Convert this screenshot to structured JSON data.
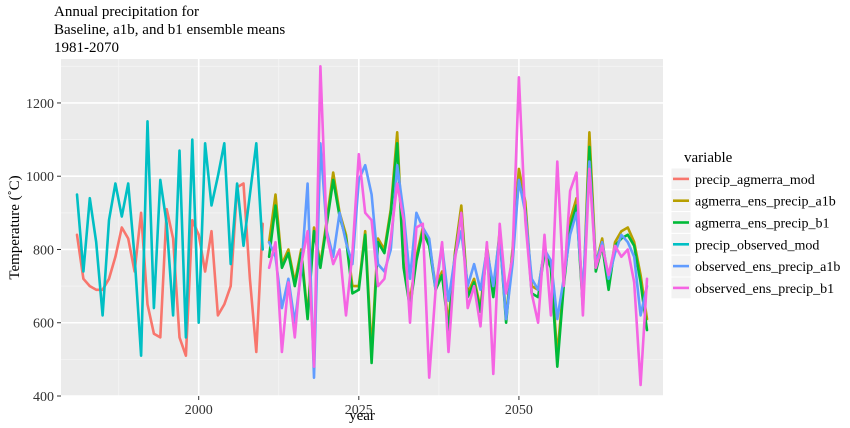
{
  "title_lines": [
    "Annual precipitation for",
    "Baseline, a1b, and b1 ensemble means",
    "1981-2070"
  ],
  "colors": {
    "panel_bg": "#EBEBEB",
    "grid_major": "#FFFFFF",
    "grid_minor": "#F5F5F5"
  },
  "chart_data": {
    "type": "line",
    "title": "Annual precipitation for Baseline, a1b, and b1 ensemble means 1981-2070",
    "xlabel": "year",
    "ylabel": "Temperature (˚C)",
    "xlim": [
      1978.5,
      2072.5
    ],
    "ylim": [
      400,
      1320
    ],
    "x_ticks": [
      2000,
      2025,
      2050
    ],
    "x_tick_labels": [
      "2000",
      "2025",
      "2050"
    ],
    "y_ticks": [
      400,
      600,
      800,
      1000,
      1200
    ],
    "y_tick_labels": [
      "400",
      "600",
      "800",
      "1000",
      "1200"
    ],
    "grid": true,
    "legend_title": "variable",
    "legend_position": "right",
    "series": [
      {
        "name": "precip_agmerra_mod",
        "color": "#F8766D",
        "x": [
          1981,
          1982,
          1983,
          1984,
          1985,
          1986,
          1987,
          1988,
          1989,
          1990,
          1991,
          1992,
          1993,
          1994,
          1995,
          1996,
          1997,
          1998,
          1999,
          2000,
          2001,
          2002,
          2003,
          2004,
          2005,
          2006,
          2007,
          2008,
          2009,
          2010
        ],
        "values": [
          840,
          720,
          700,
          690,
          690,
          720,
          780,
          860,
          830,
          740,
          900,
          650,
          570,
          560,
          910,
          830,
          560,
          510,
          880,
          840,
          740,
          850,
          620,
          650,
          700,
          970,
          980,
          720,
          520,
          870
        ]
      },
      {
        "name": "agmerra_ens_precip_a1b",
        "color": "#B79F00",
        "x": [
          2011,
          2012,
          2013,
          2014,
          2015,
          2016,
          2017,
          2018,
          2019,
          2020,
          2021,
          2022,
          2023,
          2024,
          2025,
          2026,
          2027,
          2028,
          2029,
          2030,
          2031,
          2032,
          2033,
          2034,
          2035,
          2036,
          2037,
          2038,
          2039,
          2040,
          2041,
          2042,
          2043,
          2044,
          2045,
          2046,
          2047,
          2048,
          2049,
          2050,
          2051,
          2052,
          2053,
          2054,
          2055,
          2056,
          2057,
          2058,
          2059,
          2060,
          2061,
          2062,
          2063,
          2064,
          2065,
          2066,
          2067,
          2068,
          2069,
          2070
        ],
        "values": [
          820,
          950,
          760,
          800,
          710,
          800,
          620,
          860,
          760,
          880,
          1010,
          900,
          840,
          700,
          700,
          850,
          520,
          830,
          800,
          910,
          1120,
          760,
          660,
          780,
          860,
          820,
          700,
          740,
          600,
          790,
          920,
          680,
          720,
          640,
          810,
          680,
          850,
          610,
          800,
          1020,
          930,
          700,
          690,
          800,
          760,
          510,
          710,
          880,
          940,
          650,
          1120,
          760,
          830,
          700,
          820,
          850,
          860,
          820,
          730,
          610
        ]
      },
      {
        "name": "agmerra_ens_precip_b1",
        "color": "#00BA38",
        "x": [
          2011,
          2012,
          2013,
          2014,
          2015,
          2016,
          2017,
          2018,
          2019,
          2020,
          2021,
          2022,
          2023,
          2024,
          2025,
          2026,
          2027,
          2028,
          2029,
          2030,
          2031,
          2032,
          2033,
          2034,
          2035,
          2036,
          2037,
          2038,
          2039,
          2040,
          2041,
          2042,
          2043,
          2044,
          2045,
          2046,
          2047,
          2048,
          2049,
          2050,
          2051,
          2052,
          2053,
          2054,
          2055,
          2056,
          2057,
          2058,
          2059,
          2060,
          2061,
          2062,
          2063,
          2064,
          2065,
          2066,
          2067,
          2068,
          2069,
          2070
        ],
        "values": [
          780,
          920,
          750,
          790,
          700,
          790,
          610,
          850,
          750,
          870,
          990,
          890,
          830,
          680,
          690,
          840,
          490,
          820,
          790,
          900,
          1090,
          750,
          640,
          770,
          850,
          810,
          690,
          730,
          580,
          780,
          900,
          670,
          710,
          630,
          800,
          670,
          840,
          600,
          790,
          990,
          910,
          680,
          670,
          790,
          750,
          480,
          700,
          860,
          920,
          640,
          1080,
          740,
          810,
          690,
          810,
          830,
          840,
          810,
          710,
          580
        ]
      },
      {
        "name": "precip_observed_mod",
        "color": "#00BFC4",
        "x": [
          1981,
          1982,
          1983,
          1984,
          1985,
          1986,
          1987,
          1988,
          1989,
          1990,
          1991,
          1992,
          1993,
          1994,
          1995,
          1996,
          1997,
          1998,
          1999,
          2000,
          2001,
          2002,
          2003,
          2004,
          2005,
          2006,
          2007,
          2008,
          2009,
          2010
        ],
        "values": [
          950,
          740,
          940,
          820,
          620,
          880,
          980,
          890,
          980,
          780,
          510,
          1150,
          640,
          990,
          870,
          620,
          1070,
          560,
          1100,
          600,
          1090,
          920,
          1000,
          1090,
          760,
          980,
          810,
          950,
          1090,
          800
        ]
      },
      {
        "name": "observed_ens_precip_a1b",
        "color": "#619CFF",
        "x": [
          2011,
          2012,
          2013,
          2014,
          2015,
          2016,
          2017,
          2018,
          2019,
          2020,
          2021,
          2022,
          2023,
          2024,
          2025,
          2026,
          2027,
          2028,
          2029,
          2030,
          2031,
          2032,
          2033,
          2034,
          2035,
          2036,
          2037,
          2038,
          2039,
          2040,
          2041,
          2042,
          2043,
          2044,
          2045,
          2046,
          2047,
          2048,
          2049,
          2050,
          2051,
          2052,
          2053,
          2054,
          2055,
          2056,
          2057,
          2058,
          2059,
          2060,
          2061,
          2062,
          2063,
          2064,
          2065,
          2066,
          2067,
          2068,
          2069,
          2070
        ],
        "values": [
          820,
          780,
          640,
          720,
          600,
          740,
          980,
          450,
          1090,
          850,
          780,
          900,
          820,
          760,
          990,
          1030,
          950,
          760,
          740,
          800,
          1030,
          900,
          720,
          900,
          860,
          830,
          690,
          810,
          660,
          780,
          850,
          700,
          760,
          690,
          800,
          700,
          840,
          610,
          760,
          990,
          900,
          720,
          690,
          800,
          770,
          610,
          720,
          840,
          900,
          680,
          1040,
          760,
          820,
          720,
          790,
          840,
          820,
          780,
          620,
          700
        ]
      },
      {
        "name": "observed_ens_precip_b1",
        "color": "#F564E3",
        "x": [
          2011,
          2012,
          2013,
          2014,
          2015,
          2016,
          2017,
          2018,
          2019,
          2020,
          2021,
          2022,
          2023,
          2024,
          2025,
          2026,
          2027,
          2028,
          2029,
          2030,
          2031,
          2032,
          2033,
          2034,
          2035,
          2036,
          2037,
          2038,
          2039,
          2040,
          2041,
          2042,
          2043,
          2044,
          2045,
          2046,
          2047,
          2048,
          2049,
          2050,
          2051,
          2052,
          2053,
          2054,
          2055,
          2056,
          2057,
          2058,
          2059,
          2060,
          2061,
          2062,
          2063,
          2064,
          2065,
          2066,
          2067,
          2068,
          2069,
          2070
        ],
        "values": [
          750,
          820,
          520,
          710,
          560,
          760,
          850,
          480,
          1300,
          840,
          760,
          800,
          620,
          790,
          1060,
          900,
          880,
          700,
          720,
          830,
          980,
          880,
          600,
          860,
          870,
          450,
          690,
          820,
          520,
          770,
          900,
          640,
          700,
          590,
          820,
          460,
          870,
          680,
          780,
          1270,
          880,
          680,
          600,
          840,
          620,
          1040,
          700,
          960,
          1010,
          620,
          1020,
          750,
          810,
          730,
          810,
          780,
          800,
          710,
          430,
          720
        ]
      }
    ]
  }
}
